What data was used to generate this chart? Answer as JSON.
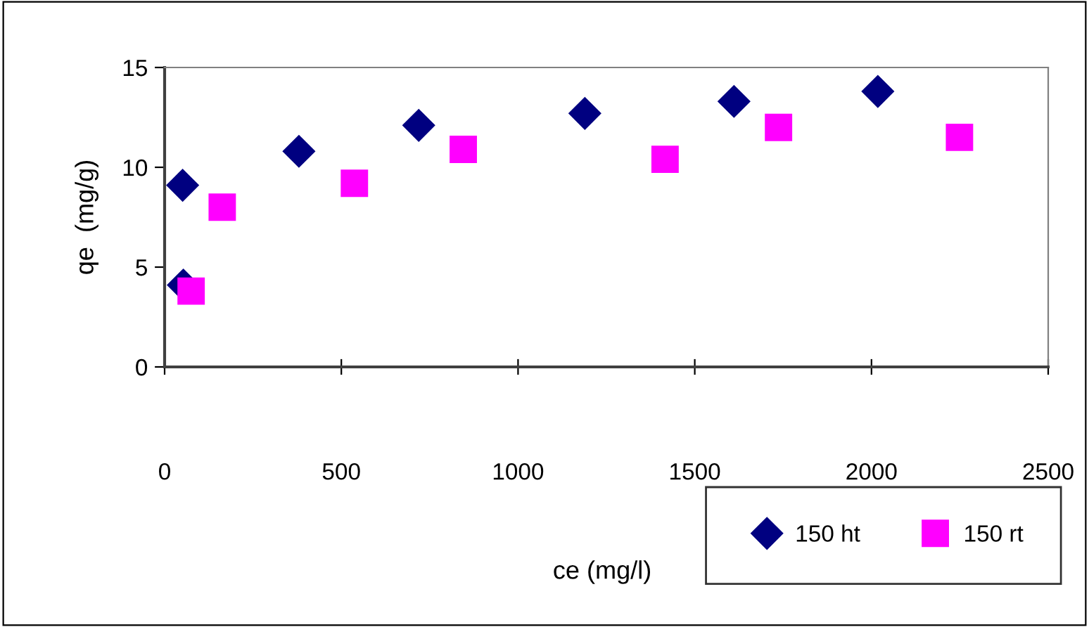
{
  "chart_data": {
    "type": "scatter",
    "xlabel": "ce (mg/l)",
    "ylabel": "qe  (mg/g)",
    "xlim": [
      0,
      2500
    ],
    "xticks": [
      0,
      500,
      1000,
      1500,
      2000,
      2500
    ],
    "ylim": [
      0,
      15
    ],
    "yticks": [
      0,
      5,
      10,
      15
    ],
    "grid": false,
    "legend": "bottom right",
    "series": [
      {
        "name": "150 ht",
        "color": "#000080",
        "marker": "diamond",
        "x": [
          51,
          53,
          380,
          719,
          1189,
          1611,
          2018
        ],
        "values": [
          9.1,
          4.1,
          10.8,
          12.1,
          12.7,
          13.3,
          13.8
        ]
      },
      {
        "name": "150 rt",
        "color": "#ff00ff",
        "marker": "square",
        "x": [
          75,
          163,
          537,
          845,
          1416,
          1737,
          2249
        ],
        "values": [
          3.8,
          8.0,
          9.2,
          10.9,
          10.4,
          12.0,
          11.5
        ]
      }
    ]
  }
}
